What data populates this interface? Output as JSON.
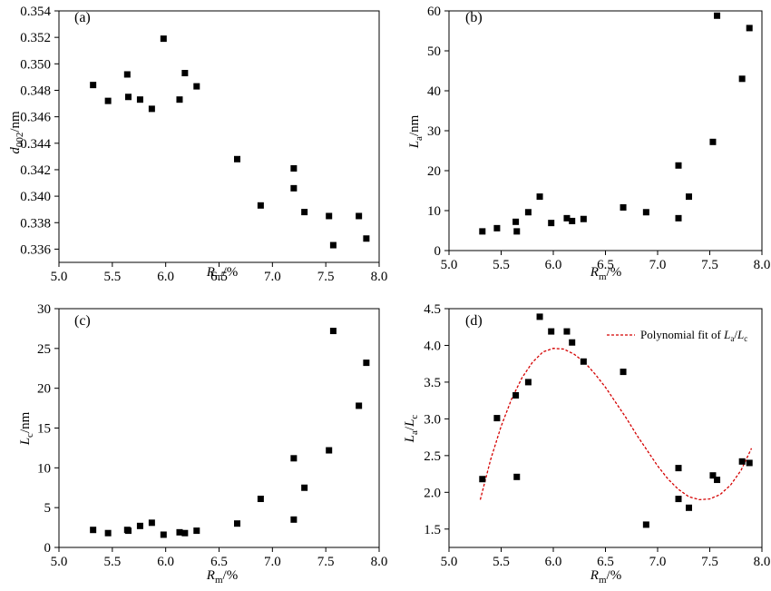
{
  "chart_data": [
    {
      "panel": "(a)",
      "type": "scatter",
      "xlabel": "R_m/%",
      "ylabel": "d_002/nm",
      "xlim": [
        5.0,
        8.0
      ],
      "ylim": [
        0.335,
        0.354
      ],
      "xticks": [
        "5.0",
        "5.5",
        "6.0",
        "6.5",
        "7.0",
        "7.5",
        "8.0"
      ],
      "yticks": [
        "0.336",
        "0.338",
        "0.340",
        "0.342",
        "0.344",
        "0.346",
        "0.348",
        "0.350",
        "0.352",
        "0.354"
      ],
      "x": [
        5.32,
        5.46,
        5.64,
        5.65,
        5.76,
        5.87,
        5.98,
        6.13,
        6.18,
        6.29,
        6.67,
        6.89,
        7.2,
        7.2,
        7.3,
        7.53,
        7.57,
        7.81,
        7.88
      ],
      "y": [
        0.3484,
        0.3472,
        0.3492,
        0.3475,
        0.3473,
        0.3466,
        0.3519,
        0.3473,
        0.3493,
        0.3483,
        0.3428,
        0.3393,
        0.3421,
        0.3406,
        0.3388,
        0.3385,
        0.3363,
        0.3385,
        0.3368
      ]
    },
    {
      "panel": "(b)",
      "type": "scatter",
      "xlabel": "R_m/%",
      "ylabel": "L_a/nm",
      "xlim": [
        5.0,
        8.0
      ],
      "ylim": [
        0,
        60
      ],
      "xticks": [
        "5.0",
        "5.5",
        "6.0",
        "6.5",
        "7.0",
        "7.5",
        "8.0"
      ],
      "yticks": [
        "0",
        "10",
        "20",
        "30",
        "40",
        "50",
        "60"
      ],
      "x": [
        5.32,
        5.46,
        5.64,
        5.65,
        5.76,
        5.87,
        5.98,
        6.13,
        6.18,
        6.29,
        6.67,
        6.89,
        7.2,
        7.2,
        7.3,
        7.53,
        7.57,
        7.81,
        7.88
      ],
      "y": [
        4.8,
        5.6,
        7.2,
        4.8,
        9.6,
        13.5,
        6.9,
        8.1,
        7.4,
        7.9,
        10.8,
        9.6,
        21.3,
        8.1,
        13.5,
        27.2,
        58.8,
        43.0,
        55.7
      ]
    },
    {
      "panel": "(c)",
      "type": "scatter",
      "xlabel": "R_m/%",
      "ylabel": "L_c/nm",
      "xlim": [
        5.0,
        8.0
      ],
      "ylim": [
        0,
        30
      ],
      "xticks": [
        "5.0",
        "5.5",
        "6.0",
        "6.5",
        "7.0",
        "7.5",
        "8.0"
      ],
      "yticks": [
        "0",
        "5",
        "10",
        "15",
        "20",
        "25",
        "30"
      ],
      "x": [
        5.32,
        5.46,
        5.64,
        5.65,
        5.76,
        5.87,
        5.98,
        6.13,
        6.18,
        6.29,
        6.67,
        6.89,
        7.2,
        7.2,
        7.3,
        7.53,
        7.57,
        7.81,
        7.88
      ],
      "y": [
        2.2,
        1.8,
        2.2,
        2.1,
        2.7,
        3.1,
        1.6,
        1.9,
        1.8,
        2.1,
        3.0,
        6.1,
        11.2,
        3.5,
        7.5,
        12.2,
        27.2,
        17.8,
        23.2
      ]
    },
    {
      "panel": "(d)",
      "type": "scatter",
      "xlabel": "R_m/%",
      "ylabel": "L_a/L_c",
      "xlim": [
        5.0,
        8.0
      ],
      "ylim": [
        1.25,
        4.5
      ],
      "xticks": [
        "5.0",
        "5.5",
        "6.0",
        "6.5",
        "7.0",
        "7.5",
        "8.0"
      ],
      "yticks": [
        "1.5",
        "2.0",
        "2.5",
        "3.0",
        "3.5",
        "4.0",
        "4.5"
      ],
      "x": [
        5.32,
        5.46,
        5.64,
        5.65,
        5.76,
        5.87,
        5.98,
        6.13,
        6.18,
        6.29,
        6.67,
        6.89,
        7.2,
        7.2,
        7.3,
        7.53,
        7.57,
        7.81,
        7.88
      ],
      "y": [
        2.18,
        3.01,
        3.32,
        2.21,
        3.5,
        4.39,
        4.19,
        4.19,
        4.04,
        3.78,
        3.64,
        1.56,
        2.33,
        1.91,
        1.79,
        2.23,
        2.17,
        2.42,
        2.4
      ],
      "fit": {
        "name": "Polynomial fit of L_a/L_c",
        "x": [
          5.3,
          5.4,
          5.5,
          5.6,
          5.7,
          5.8,
          5.9,
          6.0,
          6.1,
          6.2,
          6.3,
          6.4,
          6.5,
          6.6,
          6.7,
          6.8,
          6.9,
          7.0,
          7.1,
          7.2,
          7.3,
          7.4,
          7.5,
          7.6,
          7.7,
          7.8,
          7.9
        ],
        "y": [
          1.9,
          2.45,
          2.9,
          3.27,
          3.56,
          3.77,
          3.91,
          3.96,
          3.95,
          3.88,
          3.77,
          3.61,
          3.43,
          3.22,
          3.01,
          2.78,
          2.57,
          2.36,
          2.18,
          2.04,
          1.94,
          1.9,
          1.91,
          1.97,
          2.1,
          2.3,
          2.6
        ],
        "color": "#d40000",
        "style": "dashed"
      }
    }
  ],
  "legend": {
    "text": "Polynomial fit of ",
    "sub_a": "a",
    "sub_c": "c"
  },
  "marker_color": "#000000",
  "axis_color": "#000000"
}
